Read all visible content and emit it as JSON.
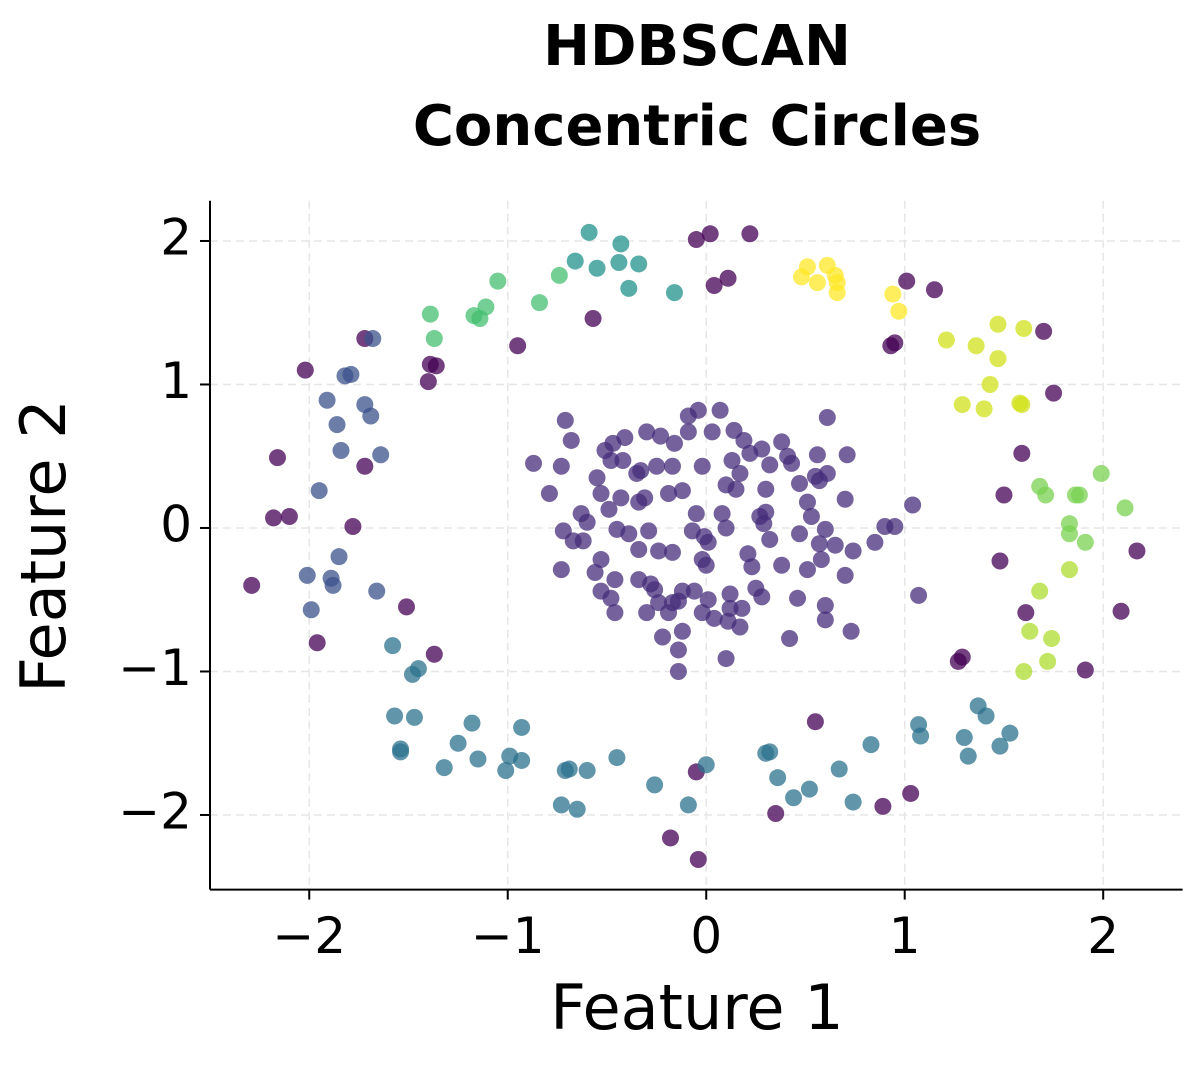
{
  "chart_data": {
    "type": "scatter",
    "title": [
      "HDBSCAN",
      "Concentric Circles"
    ],
    "xlabel": "Feature 1",
    "ylabel": "Feature 2",
    "xlim": [
      -2.5,
      2.4
    ],
    "ylim": [
      -2.52,
      2.28
    ],
    "xticks": [
      {
        "value": -2,
        "label": "−2"
      },
      {
        "value": -1,
        "label": "−1"
      },
      0,
      1,
      2
    ],
    "yticks": [
      {
        "value": -2,
        "label": "−2"
      },
      {
        "value": -1,
        "label": "−1"
      },
      0,
      1,
      2
    ],
    "grid": true,
    "series": [
      {
        "color": "#440154",
        "x": [
          -2.29,
          -2.18,
          -2.1,
          -2.16,
          -2.02,
          -1.96,
          -1.78,
          -1.72,
          -1.72,
          -1.51,
          -1.37,
          -1.4,
          -1.39,
          -1.36,
          -0.95,
          -0.57,
          -0.05,
          0.02,
          0.22,
          0.04,
          0.11,
          1.01,
          1.15,
          0.93,
          0.95,
          1.7,
          1.75,
          1.59,
          1.5,
          1.48,
          1.61,
          1.29,
          1.27,
          2.09,
          2.17,
          1.91,
          1.03,
          0.89,
          0.55,
          0.35,
          -0.05,
          -0.18,
          -0.04
        ],
        "y": [
          -0.4,
          0.07,
          0.08,
          0.49,
          1.1,
          -0.8,
          0.01,
          0.43,
          1.32,
          -0.55,
          -0.88,
          1.02,
          1.14,
          1.13,
          1.27,
          1.46,
          2.01,
          2.05,
          2.05,
          1.69,
          1.74,
          1.72,
          1.66,
          1.27,
          1.29,
          1.37,
          0.94,
          0.52,
          0.23,
          -0.23,
          -0.59,
          -0.9,
          -0.93,
          -0.58,
          -0.16,
          -0.99,
          -1.85,
          -1.94,
          -1.35,
          -1.99,
          -1.7,
          -2.16,
          -2.31
        ]
      },
      {
        "color": "#472d7b",
        "x": [
          -0.09,
          -0.04,
          0.07,
          -0.71,
          0.61,
          -0.3,
          -0.23,
          -0.16,
          -0.09,
          0.03,
          0.14,
          -0.41,
          -0.47,
          -0.51,
          -0.68,
          0.38,
          0.19,
          0.28,
          0.41,
          0.56,
          0.71,
          0.22,
          -0.87,
          -0.73,
          -0.48,
          -0.42,
          -0.33,
          -0.25,
          -0.17,
          -0.02,
          0.13,
          0.32,
          0.43,
          0.55,
          0.61,
          -0.55,
          -0.35,
          0.1,
          0.15,
          0.17,
          0.3,
          0.47,
          0.57,
          -0.79,
          -0.53,
          -0.43,
          -0.31,
          -0.19,
          -0.12,
          0.7,
          1.04,
          -0.63,
          -0.49,
          -0.34,
          -0.05,
          0.08,
          0.3,
          0.51,
          0.53,
          0.9,
          -0.6,
          -0.72,
          -0.45,
          -0.39,
          -0.29,
          -0.07,
          -0.01,
          0.1,
          0.27,
          0.29,
          0.47,
          0.6,
          0.85,
          0.95,
          -0.53,
          -0.67,
          -0.62,
          -0.34,
          -0.24,
          -0.17,
          0.01,
          -0.02,
          0.21,
          0.32,
          0.65,
          0.74,
          0.57,
          -0.73,
          -0.56,
          0.0,
          0.23,
          0.51,
          0.58,
          0.7,
          0.38,
          -0.46,
          -0.34,
          -0.28,
          -0.26,
          -0.53,
          -0.48,
          -0.12,
          -0.06,
          -0.24,
          -0.17,
          0.01,
          0.12,
          0.25,
          0.28,
          0.46,
          0.6,
          -0.46,
          -0.3,
          -0.19,
          -0.14,
          0.04,
          0.12,
          0.18,
          0.11,
          0.17,
          0.6,
          0.73,
          -0.22,
          -0.12,
          0.42,
          -0.14,
          0.1,
          -0.14,
          1.07,
          -0.02
        ],
        "y": [
          0.78,
          0.82,
          0.82,
          0.75,
          0.77,
          0.67,
          0.64,
          0.59,
          0.67,
          0.67,
          0.68,
          0.63,
          0.59,
          0.54,
          0.61,
          0.6,
          0.61,
          0.55,
          0.5,
          0.51,
          0.51,
          0.52,
          0.45,
          0.43,
          0.47,
          0.47,
          0.4,
          0.43,
          0.43,
          0.43,
          0.47,
          0.44,
          0.45,
          0.36,
          0.38,
          0.35,
          0.38,
          0.3,
          0.27,
          0.38,
          0.27,
          0.31,
          0.33,
          0.24,
          0.24,
          0.21,
          0.21,
          0.24,
          0.26,
          0.2,
          0.16,
          0.1,
          0.13,
          0.18,
          0.1,
          0.1,
          0.11,
          0.18,
          0.08,
          0.01,
          0.04,
          -0.02,
          -0.01,
          -0.04,
          -0.02,
          -0.02,
          -0.06,
          0.0,
          0.08,
          0.03,
          -0.04,
          -0.01,
          -0.1,
          0.01,
          -0.22,
          -0.09,
          -0.09,
          -0.15,
          -0.16,
          -0.17,
          -0.1,
          -0.22,
          -0.18,
          -0.08,
          -0.12,
          -0.16,
          -0.11,
          -0.29,
          -0.31,
          -0.26,
          -0.27,
          -0.29,
          -0.22,
          -0.33,
          -0.26,
          -0.36,
          -0.36,
          -0.39,
          -0.43,
          -0.44,
          -0.49,
          -0.44,
          -0.44,
          -0.52,
          -0.52,
          -0.5,
          -0.46,
          -0.42,
          -0.48,
          -0.49,
          -0.54,
          -0.59,
          -0.59,
          -0.59,
          -0.51,
          -0.63,
          -0.56,
          -0.56,
          -0.65,
          -0.69,
          -0.64,
          -0.72,
          -0.76,
          -0.72,
          -0.77,
          -0.85,
          -0.91,
          -1.0,
          -0.47,
          -0.59
        ]
      },
      {
        "color": "#3b528b",
        "x": [
          -1.82,
          -1.79,
          -1.91,
          -1.86,
          -1.72,
          -1.69,
          -1.84,
          -1.64,
          -1.68,
          -1.95,
          -2.01,
          -1.99,
          -1.85,
          -1.89,
          -1.88,
          -1.66
        ],
        "y": [
          1.06,
          1.07,
          0.89,
          0.72,
          0.86,
          0.78,
          0.54,
          0.51,
          1.32,
          0.26,
          -0.33,
          -0.57,
          -0.2,
          -0.35,
          -0.4,
          -0.44
        ]
      },
      {
        "color": "#2c728e",
        "x": [
          -1.58,
          -1.48,
          -1.45,
          -1.57,
          -1.54,
          -1.54,
          -1.47,
          -1.32,
          -1.18,
          -1.25,
          -1.15,
          -1.01,
          -0.99,
          -0.93,
          -0.93,
          -0.73,
          -0.65,
          -0.71,
          -0.69,
          -0.6,
          -0.45,
          -0.26,
          -0.09,
          0.0,
          0.3,
          0.32,
          0.36,
          0.44,
          0.52,
          0.67,
          0.74,
          0.83,
          1.07,
          1.08,
          1.3,
          1.32,
          1.37,
          1.41,
          1.48,
          1.53
        ],
        "y": [
          -0.82,
          -1.02,
          -0.98,
          -1.31,
          -1.54,
          -1.56,
          -1.32,
          -1.67,
          -1.36,
          -1.5,
          -1.61,
          -1.69,
          -1.59,
          -1.39,
          -1.62,
          -1.93,
          -1.96,
          -1.69,
          -1.68,
          -1.69,
          -1.6,
          -1.79,
          -1.93,
          -1.65,
          -1.57,
          -1.56,
          -1.74,
          -1.88,
          -1.82,
          -1.68,
          -1.91,
          -1.51,
          -1.37,
          -1.45,
          -1.46,
          -1.59,
          -1.24,
          -1.31,
          -1.52,
          -1.43
        ]
      },
      {
        "color": "#21918c",
        "x": [
          -0.66,
          -0.59,
          -0.55,
          -0.43,
          -0.44,
          -0.39,
          -0.34,
          -0.16
        ],
        "y": [
          1.86,
          2.06,
          1.81,
          1.98,
          1.85,
          1.67,
          1.84,
          1.64
        ]
      },
      {
        "color": "#44bf70",
        "x": [
          -1.39,
          -1.37,
          -1.17,
          -1.14,
          -1.11,
          -1.05,
          -0.84,
          -0.74
        ],
        "y": [
          1.49,
          1.32,
          1.48,
          1.46,
          1.54,
          1.72,
          1.57,
          1.76
        ]
      },
      {
        "color": "#7ad151",
        "x": [
          1.99,
          2.11,
          1.68,
          1.71,
          1.86,
          1.88,
          1.83,
          1.83,
          1.91
        ],
        "y": [
          0.38,
          0.14,
          0.29,
          0.23,
          0.23,
          0.23,
          0.03,
          -0.04,
          -0.1
        ]
      },
      {
        "color": "#addc30",
        "x": [
          1.68,
          1.63,
          1.74,
          1.6,
          1.72,
          1.83
        ],
        "y": [
          -0.44,
          -0.72,
          -0.77,
          -1.0,
          -0.93,
          -0.29
        ]
      },
      {
        "color": "#d2e21b",
        "x": [
          1.21,
          1.36,
          1.47,
          1.6,
          1.47,
          1.43,
          1.29,
          1.4,
          1.58,
          1.59
        ],
        "y": [
          1.31,
          1.27,
          1.42,
          1.39,
          1.18,
          1.0,
          0.86,
          0.83,
          0.87,
          0.86
        ]
      },
      {
        "color": "#fde725",
        "x": [
          0.51,
          0.48,
          0.61,
          0.56,
          0.65,
          0.66,
          0.66,
          0.94,
          0.97
        ],
        "y": [
          1.82,
          1.75,
          1.83,
          1.71,
          1.76,
          1.71,
          1.64,
          1.63,
          1.51
        ]
      }
    ]
  }
}
